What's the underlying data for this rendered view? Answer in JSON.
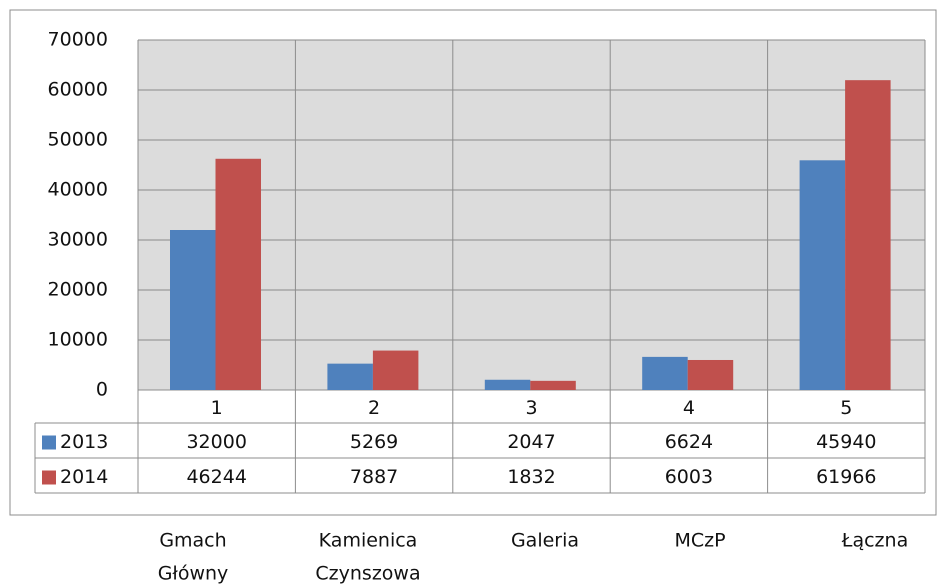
{
  "chart_data": {
    "type": "bar",
    "categories": [
      "1",
      "2",
      "3",
      "4",
      "5"
    ],
    "series": [
      {
        "name": "2013",
        "color": "#4f81bd",
        "values": [
          32000,
          5269,
          2047,
          6624,
          45940
        ]
      },
      {
        "name": "2014",
        "color": "#c0504d",
        "values": [
          46244,
          7887,
          1832,
          6003,
          61966
        ]
      }
    ],
    "ylim": [
      0,
      70000
    ],
    "yticks": [
      0,
      10000,
      20000,
      30000,
      40000,
      50000,
      60000,
      70000
    ],
    "grid": true,
    "labels": [
      [
        "Gmach",
        "Główny"
      ],
      [
        "Kamienica",
        "Czynszowa"
      ],
      [
        "Galeria"
      ],
      [
        "MCzP"
      ],
      [
        "Łączna"
      ]
    ]
  }
}
